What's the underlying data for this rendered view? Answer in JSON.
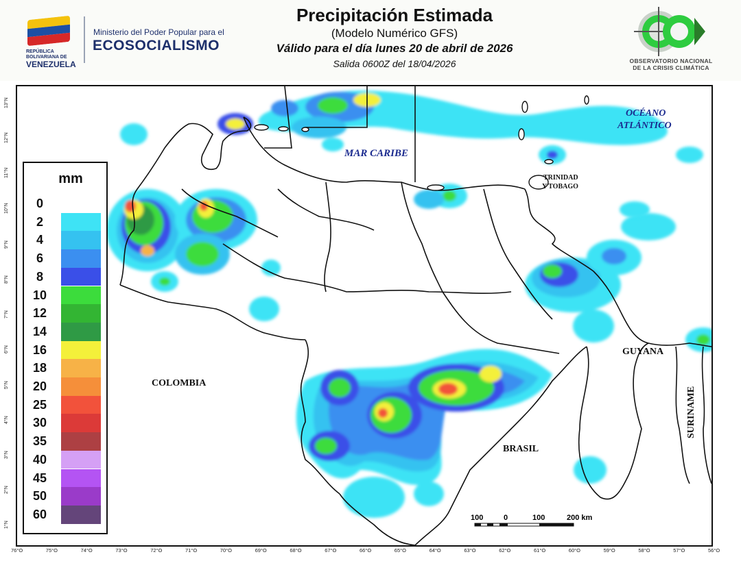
{
  "header": {
    "title": "Precipitación Estimada",
    "subtitle": "(Modelo Numérico GFS)",
    "valid_text": "Válido para el día lunes 20 de abril de 2026",
    "issue_text": "Salida 0600Z del 18/04/2026"
  },
  "gov_logo": {
    "republic": "REPÚBLICA BOLIVARIANA DE",
    "country": "VENEZUELA",
    "ministry": "Ministerio del Poder Popular para el",
    "name": "ECOSOCIALISMO"
  },
  "obs_logo": {
    "line1": "OBSERVATORIO NACIONAL",
    "line2": "DE LA CRISIS CLIMÁTICA"
  },
  "legend": {
    "unit": "mm",
    "items": [
      {
        "label": "0",
        "color": "#ffffff"
      },
      {
        "label": "2",
        "color": "#3ee3f5"
      },
      {
        "label": "4",
        "color": "#35c2f0"
      },
      {
        "label": "6",
        "color": "#3b8ff0"
      },
      {
        "label": "8",
        "color": "#3a4fe8"
      },
      {
        "label": "10",
        "color": "#3cdc3c"
      },
      {
        "label": "12",
        "color": "#33b533"
      },
      {
        "label": "14",
        "color": "#2f9a45"
      },
      {
        "label": "16",
        "color": "#f4f03a"
      },
      {
        "label": "18",
        "color": "#f7b247"
      },
      {
        "label": "20",
        "color": "#f58f3a"
      },
      {
        "label": "25",
        "color": "#f2523b"
      },
      {
        "label": "30",
        "color": "#dc3a38"
      },
      {
        "label": "35",
        "color": "#ad4043"
      },
      {
        "label": "40",
        "color": "#d5a0f5"
      },
      {
        "label": "45",
        "color": "#b454f3"
      },
      {
        "label": "50",
        "color": "#9a3bc9"
      },
      {
        "label": "60",
        "color": "#64457a"
      }
    ]
  },
  "labels": {
    "mar_caribe": "MAR CARIBE",
    "oceano_1": "OCÉANO",
    "oceano_2": "ATLÁNTICO",
    "trinidad_1": "TRINIDAD",
    "trinidad_2": "Y TOBAGO",
    "colombia": "COLOMBIA",
    "guyana": "GUYANA",
    "suriname": "SURINAME",
    "brasil": "BRASIL"
  },
  "scale": {
    "labels": [
      "100",
      "0",
      "100",
      "200 km"
    ]
  },
  "axes": {
    "lat": [
      "13°N",
      "12°N",
      "11°N",
      "10°N",
      "9°N",
      "8°N",
      "7°N",
      "6°N",
      "5°N",
      "4°N",
      "3°N",
      "2°N",
      "1°N"
    ],
    "lon": [
      "76°O",
      "75°O",
      "74°O",
      "73°O",
      "72°O",
      "71°O",
      "70°O",
      "69°O",
      "68°O",
      "67°O",
      "66°O",
      "65°O",
      "64°O",
      "63°O",
      "62°O",
      "61°O",
      "60°O",
      "59°O",
      "58°O",
      "57°O",
      "56°O"
    ]
  }
}
